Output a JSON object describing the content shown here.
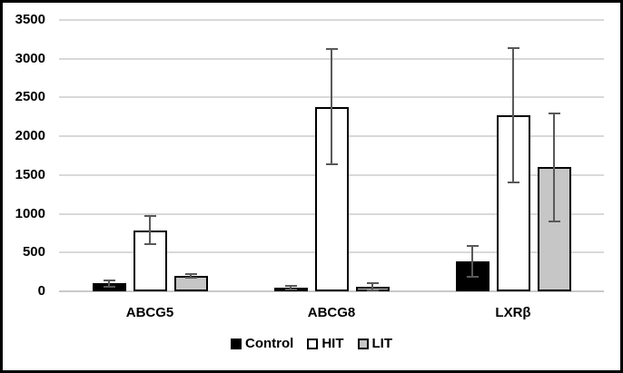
{
  "chart_data": {
    "type": "bar",
    "title": "",
    "xlabel": "",
    "ylabel": "",
    "categories": [
      "ABCG5",
      "ABCG8",
      "LXRβ"
    ],
    "series": [
      {
        "name": "Control",
        "values": [
          100,
          45,
          385
        ],
        "errors": [
          45,
          20,
          200
        ],
        "fill": "#000000",
        "border": "#000000"
      },
      {
        "name": "HIT",
        "values": [
          790,
          2380,
          2270
        ],
        "errors": [
          185,
          740,
          870
        ],
        "fill": "#ffffff",
        "border": "#000000"
      },
      {
        "name": "LIT",
        "values": [
          195,
          55,
          1600
        ],
        "errors": [
          25,
          45,
          700
        ],
        "fill": "#c6c6c6",
        "border": "#000000"
      }
    ],
    "ylim": [
      0,
      3500
    ],
    "yticks": [
      0,
      500,
      1000,
      1500,
      2000,
      2500,
      3000,
      3500
    ],
    "grid": true,
    "legend_position": "bottom",
    "colors": {
      "gridline": "#d9d9d9",
      "baseline": "#c9c9c9",
      "error_bar": "#595959",
      "text": "#000000",
      "frame_border": "#000000",
      "background": "#ffffff"
    }
  }
}
